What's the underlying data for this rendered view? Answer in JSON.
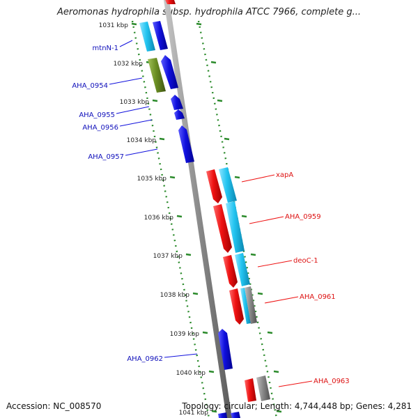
{
  "title": "Aeromonas hydrophila subsp. hydrophila ATCC 7966, complete g...",
  "accession_label": "Accession: NC_008570",
  "topology_label": "Topology: circular; Length: 4,744,448 bp; Genes: 4,281",
  "colors": {
    "backbone": "#8c8c8c",
    "tick": "#2a8a2a",
    "forward_cds": "#ee1111",
    "reverse_cds": "#1010dd",
    "forward_label": "#dd1111",
    "reverse_label": "#1010bb",
    "cyan": "#22c4f0",
    "olive": "#6b8e23",
    "gray": "#8a8a8a"
  },
  "scale_labels": [
    "1031 kbp",
    "1032 kbp",
    "1033 kbp",
    "1034 kbp",
    "1035 kbp",
    "1036 kbp",
    "1037 kbp",
    "1038 kbp",
    "1039 kbp",
    "1040 kbp",
    "1041 kbp"
  ],
  "reverse_genes": [
    "mtnN-1",
    "AHA_0954",
    "AHA_0955",
    "AHA_0956",
    "AHA_0957",
    "AHA_0962"
  ],
  "forward_genes": [
    "xapA",
    "AHA_0959",
    "deoC-1",
    "AHA_0961",
    "AHA_0963"
  ]
}
